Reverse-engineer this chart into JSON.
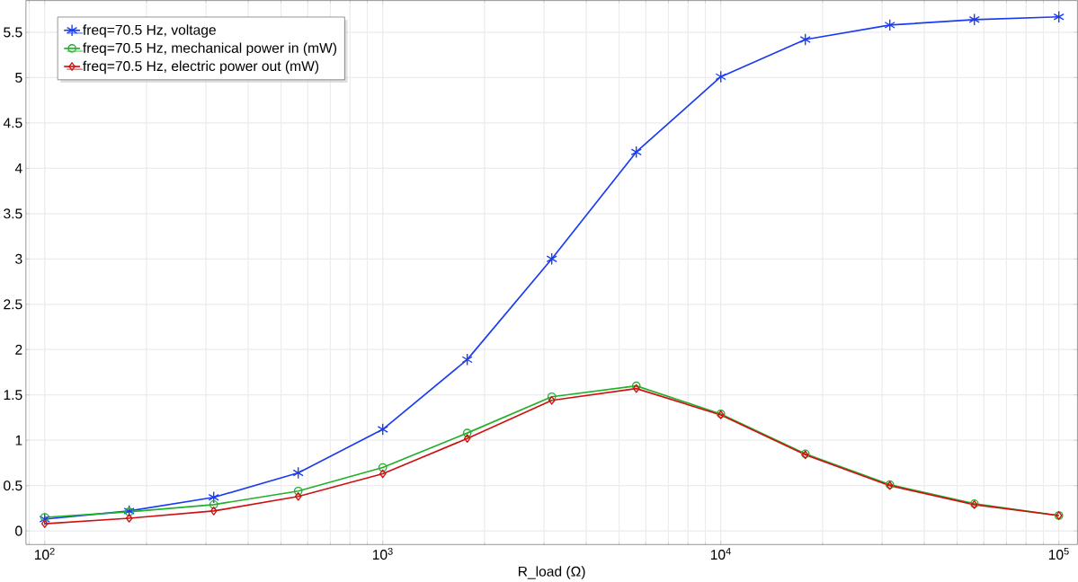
{
  "chart_data": {
    "type": "line",
    "xlabel": "R_load (Ω)",
    "log": "x",
    "grid": true,
    "legend": "top left",
    "xlim": [
      88,
      113500
    ],
    "ylim": [
      -0.15,
      5.85
    ],
    "xticks": [
      {
        "value": 100,
        "label": "10$^{2}$"
      },
      {
        "value": 1000,
        "label": "10$^{3}$"
      },
      {
        "value": 10000,
        "label": "10$^{4}$"
      },
      {
        "value": 100000,
        "label": "10$^{5}$"
      }
    ],
    "yticks": [
      0,
      0.5,
      1,
      1.5,
      2,
      2.5,
      3,
      3.5,
      4,
      4.5,
      5,
      5.5
    ],
    "x": [
      100,
      177.8,
      316.2,
      562.3,
      1000,
      1778,
      3162,
      5623,
      10000,
      17783,
      31623,
      56234,
      100000
    ],
    "series": [
      {
        "name": "freq=70.5 Hz, voltage",
        "color": "#1a3cf0",
        "marker": "cross",
        "values": [
          0.13,
          0.22,
          0.37,
          0.64,
          1.12,
          1.89,
          3.0,
          4.18,
          5.01,
          5.42,
          5.58,
          5.64,
          5.67
        ]
      },
      {
        "name": "freq=70.5 Hz, mechanical power in (mW)",
        "color": "#22b02a",
        "marker": "circle",
        "values": [
          0.15,
          0.21,
          0.29,
          0.44,
          0.7,
          1.08,
          1.48,
          1.6,
          1.29,
          0.85,
          0.51,
          0.3,
          0.17
        ]
      },
      {
        "name": "freq=70.5 Hz, electric power out (mW)",
        "color": "#d01010",
        "marker": "diamond",
        "values": [
          0.08,
          0.14,
          0.22,
          0.38,
          0.63,
          1.02,
          1.44,
          1.57,
          1.28,
          0.84,
          0.5,
          0.29,
          0.17
        ]
      }
    ]
  }
}
